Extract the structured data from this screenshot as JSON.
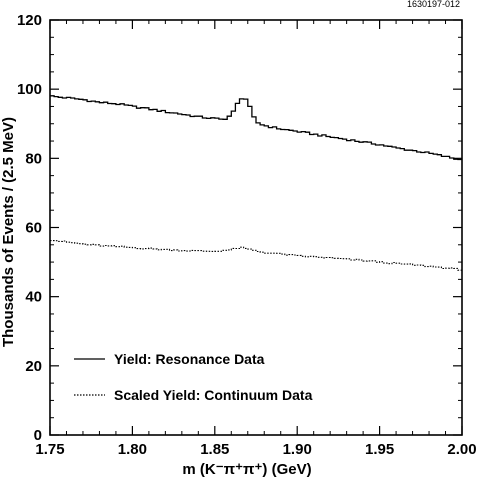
{
  "figure_id": "1630197-012",
  "chart_data": {
    "type": "line",
    "xlabel": "m (K⁻π⁺π⁺) (GeV)",
    "ylabel": "Thousands of Events / (2.5 MeV)",
    "xlim": [
      1.75,
      2.0
    ],
    "ylim": [
      0,
      120
    ],
    "x_ticks": [
      "1.75",
      "1.80",
      "1.85",
      "1.90",
      "1.95",
      "2.00"
    ],
    "y_ticks": [
      "0",
      "20",
      "40",
      "60",
      "80",
      "100",
      "120"
    ],
    "grid": false,
    "legend_position": "bottom-left",
    "bin_width": 0.0025,
    "series": [
      {
        "name": "Yield:  Resonance  Data",
        "style": "solid",
        "x": [
          1.75,
          1.76,
          1.77,
          1.78,
          1.79,
          1.8,
          1.81,
          1.82,
          1.83,
          1.84,
          1.85,
          1.855,
          1.86,
          1.8625,
          1.865,
          1.8675,
          1.87,
          1.8725,
          1.875,
          1.88,
          1.885,
          1.89,
          1.9,
          1.91,
          1.92,
          1.93,
          1.94,
          1.95,
          1.96,
          1.97,
          1.98,
          1.99,
          2.0
        ],
        "y": [
          98,
          97.5,
          97,
          96.2,
          95.8,
          95,
          94.3,
          93.5,
          92.8,
          92,
          91.5,
          91.2,
          92.5,
          94.5,
          97,
          97.8,
          96.5,
          93,
          90.5,
          89.5,
          89,
          88.5,
          87.8,
          87,
          86.2,
          85.5,
          84.7,
          84,
          83,
          82.3,
          81.5,
          80.5,
          79.5
        ]
      },
      {
        "name": "Scaled  Yield:  Continuum  Data",
        "style": "dotted",
        "x": [
          1.75,
          1.76,
          1.77,
          1.78,
          1.79,
          1.8,
          1.81,
          1.82,
          1.83,
          1.84,
          1.85,
          1.86,
          1.865,
          1.87,
          1.875,
          1.88,
          1.89,
          1.9,
          1.91,
          1.92,
          1.93,
          1.94,
          1.95,
          1.96,
          1.97,
          1.98,
          1.99,
          2.0
        ],
        "y": [
          56.5,
          55.8,
          55.2,
          54.8,
          54.5,
          54.2,
          53.9,
          53.6,
          53.4,
          53.2,
          53.1,
          53.6,
          54.2,
          53.8,
          53.2,
          52.8,
          52.3,
          51.8,
          51.5,
          51.2,
          50.8,
          50.5,
          50.0,
          49.6,
          49.2,
          48.8,
          48.3,
          47.8
        ]
      }
    ]
  }
}
